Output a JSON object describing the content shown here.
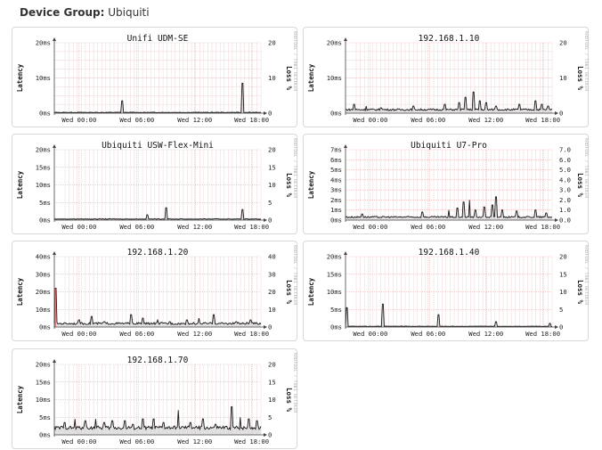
{
  "header": {
    "label": "Device Group:",
    "group": "Ubiquiti"
  },
  "watermark": "RRDTOOL / TOBI OETIKER",
  "loss_axis_label": "Loss %",
  "latency_axis_label": "Latency",
  "colors": {
    "grid_major": "#e7a9a9",
    "grid_minor": "#eed6d6",
    "line": "#1a1a1a",
    "area": "#c8c8c8",
    "axis": "#444444"
  },
  "charts": [
    {
      "title": "Unifi UDM-SE",
      "latency_ticks": [
        "20ms",
        "10ms",
        "0ms"
      ],
      "loss_ticks": [
        "20",
        "10",
        "0"
      ],
      "x_ticks": [
        "Wed 00:00",
        "Wed 06:00",
        "Wed 12:00",
        "Wed 18:00"
      ],
      "y_max": 20,
      "spikes": [
        [
          0.33,
          3.5
        ],
        [
          0.91,
          8.5
        ]
      ],
      "baseline": 0.2,
      "noise": 0.15
    },
    {
      "title": "192.168.1.10",
      "latency_ticks": [
        "20ms",
        "10ms",
        "0ms"
      ],
      "loss_ticks": [
        "20",
        "10",
        "0"
      ],
      "x_ticks": [
        "Wed 00:00",
        "Wed 06:00",
        "Wed 12:00",
        "Wed 18:00"
      ],
      "y_max": 20,
      "spikes": [
        [
          0.04,
          2.5
        ],
        [
          0.1,
          2.0
        ],
        [
          0.17,
          1.5
        ],
        [
          0.33,
          2.0
        ],
        [
          0.48,
          2.5
        ],
        [
          0.55,
          3.0
        ],
        [
          0.58,
          4.5
        ],
        [
          0.62,
          6.0
        ],
        [
          0.65,
          3.5
        ],
        [
          0.68,
          3.0
        ],
        [
          0.73,
          2.0
        ],
        [
          0.84,
          2.5
        ],
        [
          0.92,
          3.5
        ],
        [
          0.95,
          2.5
        ],
        [
          0.98,
          2.0
        ]
      ],
      "baseline": 1.0,
      "noise": 0.5
    },
    {
      "title": "Ubiquiti USW-Flex-Mini",
      "latency_ticks": [
        "20ms",
        "15ms",
        "10ms",
        "5ms",
        "0ms"
      ],
      "loss_ticks": [
        "20",
        "15",
        "10",
        "5",
        "0"
      ],
      "x_ticks": [
        "Wed 00:00",
        "Wed 06:00",
        "Wed 12:00",
        "Wed 18:00"
      ],
      "y_max": 20,
      "spikes": [
        [
          0.45,
          1.5
        ],
        [
          0.54,
          3.5
        ],
        [
          0.91,
          3.0
        ]
      ],
      "baseline": 0.3,
      "noise": 0.15
    },
    {
      "title": "Ubiquiti U7-Pro",
      "latency_ticks": [
        "7ms",
        "6ms",
        "5ms",
        "4ms",
        "3ms",
        "2ms",
        "1ms",
        "0ms"
      ],
      "loss_ticks": [
        "7.0",
        "6.0",
        "5.0",
        "4.0",
        "3.0",
        "2.0",
        "1.0",
        "0.0"
      ],
      "x_ticks": [
        "Wed 00:00",
        "Wed 06:00",
        "Wed 12:00",
        "Wed 18:00"
      ],
      "y_max": 7,
      "spikes": [
        [
          0.08,
          0.6
        ],
        [
          0.37,
          0.8
        ],
        [
          0.5,
          1.0
        ],
        [
          0.54,
          1.2
        ],
        [
          0.57,
          1.8
        ],
        [
          0.6,
          2.0
        ],
        [
          0.63,
          1.0
        ],
        [
          0.67,
          1.3
        ],
        [
          0.71,
          1.5
        ],
        [
          0.73,
          2.3
        ],
        [
          0.76,
          1.0
        ],
        [
          0.83,
          0.9
        ],
        [
          0.92,
          1.0
        ],
        [
          0.97,
          0.7
        ]
      ],
      "baseline": 0.3,
      "noise": 0.15
    },
    {
      "title": "192.168.1.20",
      "latency_ticks": [
        "40ms",
        "30ms",
        "20ms",
        "10ms",
        "0ms"
      ],
      "loss_ticks": [
        "40",
        "30",
        "20",
        "10",
        "0"
      ],
      "x_ticks": [
        "Wed 00:00",
        "Wed 06:00",
        "Wed 12:00",
        "Wed 18:00"
      ],
      "y_max": 40,
      "spikes": [
        [
          0.005,
          22
        ],
        [
          0.12,
          4
        ],
        [
          0.18,
          6
        ],
        [
          0.24,
          3
        ],
        [
          0.37,
          7
        ],
        [
          0.43,
          5
        ],
        [
          0.5,
          4
        ],
        [
          0.56,
          3
        ],
        [
          0.64,
          4
        ],
        [
          0.7,
          5
        ],
        [
          0.77,
          7
        ],
        [
          0.88,
          3
        ],
        [
          0.95,
          4
        ]
      ],
      "baseline": 2.0,
      "noise": 1.2,
      "red_spike": 0.005
    },
    {
      "title": "192.168.1.40",
      "latency_ticks": [
        "20ms",
        "15ms",
        "10ms",
        "5ms",
        "0ms"
      ],
      "loss_ticks": [
        "20",
        "15",
        "10",
        "5",
        "0"
      ],
      "x_ticks": [
        "Wed 00:00",
        "Wed 06:00",
        "Wed 12:00",
        "Wed 18:00"
      ],
      "y_max": 20,
      "spikes": [
        [
          0.005,
          5.5
        ],
        [
          0.18,
          6.5
        ],
        [
          0.45,
          3.5
        ],
        [
          0.73,
          1.5
        ],
        [
          0.99,
          1.0
        ]
      ],
      "baseline": 0.2,
      "noise": 0.1
    },
    {
      "title": "192.168.1.70",
      "latency_ticks": [
        "20ms",
        "15ms",
        "10ms",
        "5ms",
        "0ms"
      ],
      "loss_ticks": [
        "20",
        "15",
        "10",
        "5",
        "0"
      ],
      "x_ticks": [
        "Wed 00:00",
        "Wed 06:00",
        "Wed 12:00",
        "Wed 18:00"
      ],
      "y_max": 20,
      "spikes": [
        [
          0.05,
          3.5
        ],
        [
          0.1,
          4.5
        ],
        [
          0.15,
          4.0
        ],
        [
          0.2,
          4.5
        ],
        [
          0.24,
          3.5
        ],
        [
          0.28,
          4.0
        ],
        [
          0.34,
          4.0
        ],
        [
          0.38,
          3.0
        ],
        [
          0.43,
          4.5
        ],
        [
          0.48,
          4.5
        ],
        [
          0.53,
          3.5
        ],
        [
          0.6,
          7.0
        ],
        [
          0.66,
          3.5
        ],
        [
          0.72,
          4.5
        ],
        [
          0.78,
          3.0
        ],
        [
          0.86,
          8.0
        ],
        [
          0.9,
          5.0
        ],
        [
          0.94,
          4.5
        ],
        [
          0.98,
          4.0
        ]
      ],
      "baseline": 2.0,
      "noise": 1.0
    }
  ]
}
